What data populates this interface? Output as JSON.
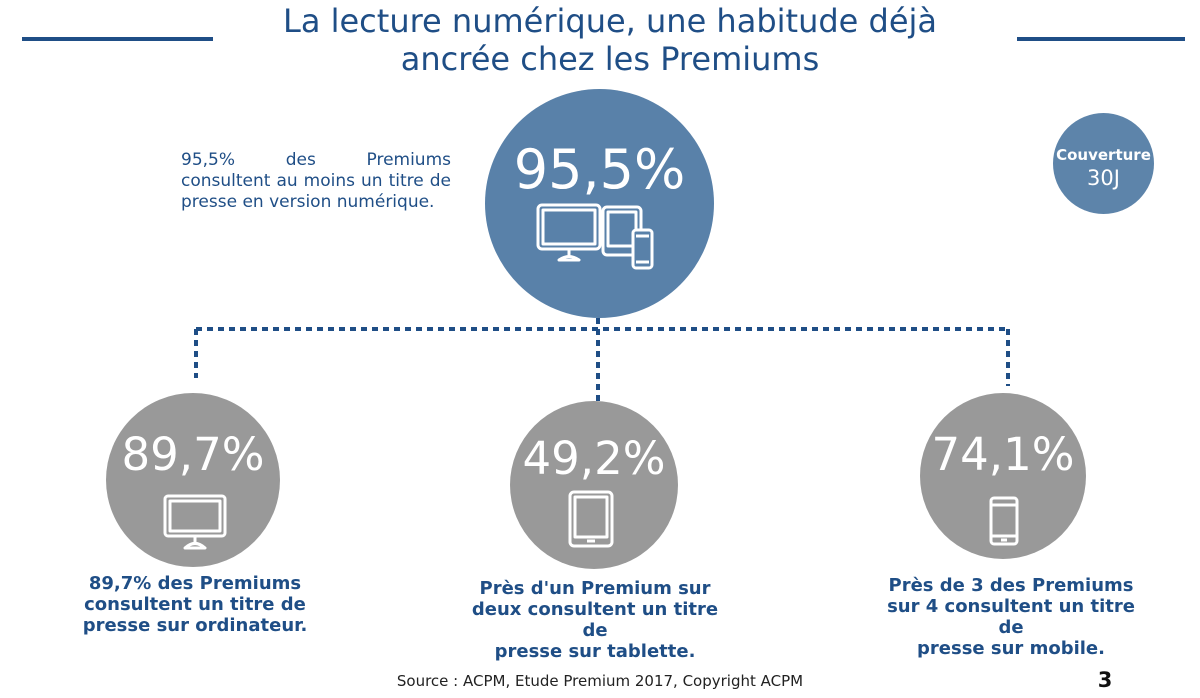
{
  "title": {
    "line1": "La lecture numérique, une habitude déjà",
    "line2": "ancrée chez les Premiums"
  },
  "intro_text": "95,5% des Premiums consultent au moins un titre de presse en version numérique.",
  "main": {
    "value": "95,5%",
    "icon": "devices-icon"
  },
  "coverage": {
    "label": "Couverture",
    "value": "30J"
  },
  "devices": [
    {
      "value": "89,7%",
      "icon": "computer-monitor-icon",
      "caption": [
        "89,7% des Premiums",
        "consultent un titre de",
        "presse sur ordinateur."
      ]
    },
    {
      "value": "49,2%",
      "icon": "tablet-icon",
      "caption": [
        "Près d'un Premium sur",
        "deux consultent un titre de",
        "presse sur tablette."
      ]
    },
    {
      "value": "74,1%",
      "icon": "smartphone-icon",
      "caption": [
        "Près de 3 des Premiums",
        "sur 4 consultent un titre de",
        "presse sur mobile."
      ]
    }
  ],
  "colors": {
    "primary": "#1f4e86",
    "main_circle": "#5981a9",
    "device_circle": "#999999"
  },
  "footer": {
    "source": "Source : ACPM, Etude Premium 2017, Copyright ACPM",
    "page_number": "3"
  }
}
